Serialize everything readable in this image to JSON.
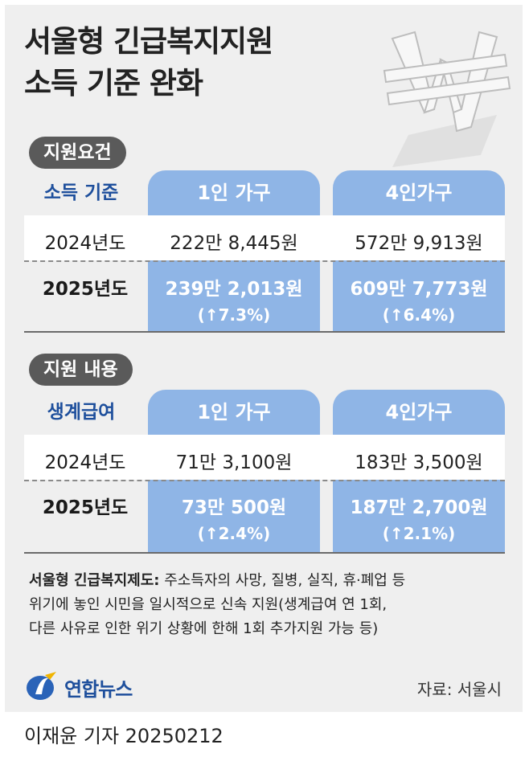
{
  "title": {
    "line1": "서울형 긴급복지지원",
    "line2": "소득 기준 완화"
  },
  "section1": {
    "pill": "지원요건",
    "row_header": "소득 기준",
    "col1": "1인 가구",
    "col2": "4인가구",
    "rows": [
      {
        "year": "2024년도",
        "c1": "222만 8,445원",
        "c2": "572만 9,913원"
      },
      {
        "year": "2025년도",
        "c1": "239만 2,013원",
        "c1_pct": "(↑7.3%)",
        "c2": "609만 7,773원",
        "c2_pct": "(↑6.4%)"
      }
    ]
  },
  "section2": {
    "pill": "지원 내용",
    "row_header": "생계급여",
    "col1": "1인 가구",
    "col2": "4인가구",
    "rows": [
      {
        "year": "2024년도",
        "c1": "71만 3,100원",
        "c2": "183만 3,500원"
      },
      {
        "year": "2025년도",
        "c1": "73만 500원",
        "c1_pct": "(↑2.4%)",
        "c2": "187만 2,700원",
        "c2_pct": "(↑2.1%)"
      }
    ]
  },
  "note": {
    "label": "서울형 긴급복지제도:",
    "text1": " 주소득자의 사망, 질병, 실직, 휴·폐업 등",
    "text2": "위기에 놓인 시민을 일시적으로 신속 지원(생계급여 연 1회,",
    "text3": "다른 사유로 인한 위기 상황에 한해 1회 추가지원 가능 등)"
  },
  "logo_text": "연합뉴스",
  "source": "자료: 서울시",
  "byline": "이재윤 기자  20250212",
  "colors": {
    "accent": "#8fb5e6",
    "label_blue": "#1e4f9c",
    "pill": "#5a5a5a",
    "panel": "#efefef"
  },
  "icons": {
    "currency": "won-sign-icon",
    "logo": "yonhap-logo-icon"
  }
}
